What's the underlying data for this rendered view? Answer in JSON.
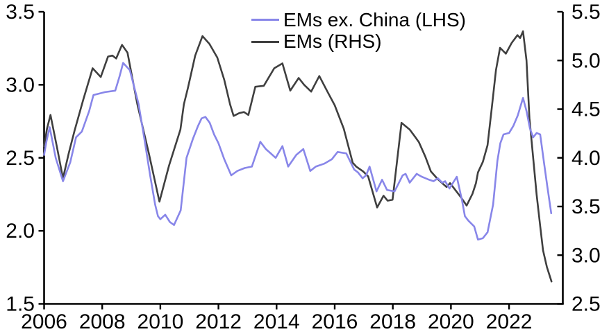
{
  "chart_data": {
    "type": "line",
    "title": "",
    "background_color": "#ffffff",
    "axis_color": "#000000",
    "text_color": "#000000",
    "grid": false,
    "legend": {
      "position": "top-center",
      "entries": [
        "EMs ex. China (LHS)",
        "EMs (RHS)"
      ]
    },
    "x_axis": {
      "range": [
        2006,
        2023.85
      ],
      "ticks": [
        2006,
        2008,
        2010,
        2012,
        2014,
        2016,
        2018,
        2020,
        2022
      ]
    },
    "y_axis_left": {
      "range": [
        1.5,
        3.5
      ],
      "ticks": [
        1.5,
        2.0,
        2.5,
        3.0,
        3.5
      ],
      "decimals": 1
    },
    "y_axis_right": {
      "range": [
        2.5,
        5.5
      ],
      "ticks": [
        2.5,
        3.0,
        3.5,
        4.0,
        4.5,
        5.0,
        5.5
      ],
      "decimals": 1
    },
    "series": [
      {
        "name": "EMs ex. China (LHS)",
        "axis": "left",
        "color": "#8886e9",
        "points": [
          [
            2006.0,
            2.52
          ],
          [
            2006.08,
            2.61
          ],
          [
            2006.19,
            2.71
          ],
          [
            2006.4,
            2.5
          ],
          [
            2006.65,
            2.34
          ],
          [
            2006.9,
            2.47
          ],
          [
            2007.1,
            2.64
          ],
          [
            2007.3,
            2.68
          ],
          [
            2007.55,
            2.82
          ],
          [
            2007.7,
            2.93
          ],
          [
            2007.9,
            2.94
          ],
          [
            2008.1,
            2.95
          ],
          [
            2008.45,
            2.96
          ],
          [
            2008.6,
            3.06
          ],
          [
            2008.72,
            3.15
          ],
          [
            2008.95,
            3.1
          ],
          [
            2009.25,
            2.87
          ],
          [
            2009.45,
            2.63
          ],
          [
            2009.65,
            2.38
          ],
          [
            2009.82,
            2.18
          ],
          [
            2009.92,
            2.1
          ],
          [
            2010.0,
            2.08
          ],
          [
            2010.17,
            2.11
          ],
          [
            2010.33,
            2.06
          ],
          [
            2010.47,
            2.04
          ],
          [
            2010.7,
            2.14
          ],
          [
            2010.9,
            2.5
          ],
          [
            2011.12,
            2.63
          ],
          [
            2011.3,
            2.72
          ],
          [
            2011.42,
            2.77
          ],
          [
            2011.55,
            2.78
          ],
          [
            2011.7,
            2.74
          ],
          [
            2011.85,
            2.66
          ],
          [
            2012.0,
            2.6
          ],
          [
            2012.2,
            2.49
          ],
          [
            2012.44,
            2.38
          ],
          [
            2012.65,
            2.41
          ],
          [
            2012.9,
            2.43
          ],
          [
            2013.15,
            2.44
          ],
          [
            2013.44,
            2.61
          ],
          [
            2013.63,
            2.56
          ],
          [
            2013.8,
            2.53
          ],
          [
            2013.97,
            2.5
          ],
          [
            2014.2,
            2.58
          ],
          [
            2014.4,
            2.44
          ],
          [
            2014.68,
            2.52
          ],
          [
            2014.92,
            2.56
          ],
          [
            2015.16,
            2.41
          ],
          [
            2015.35,
            2.44
          ],
          [
            2015.64,
            2.46
          ],
          [
            2015.9,
            2.49
          ],
          [
            2016.1,
            2.54
          ],
          [
            2016.4,
            2.53
          ],
          [
            2016.67,
            2.42
          ],
          [
            2016.8,
            2.4
          ],
          [
            2016.96,
            2.36
          ],
          [
            2017.08,
            2.38
          ],
          [
            2017.2,
            2.44
          ],
          [
            2017.44,
            2.27
          ],
          [
            2017.63,
            2.35
          ],
          [
            2017.8,
            2.28
          ],
          [
            2018.06,
            2.27
          ],
          [
            2018.34,
            2.38
          ],
          [
            2018.44,
            2.39
          ],
          [
            2018.58,
            2.33
          ],
          [
            2018.82,
            2.39
          ],
          [
            2019.0,
            2.37
          ],
          [
            2019.25,
            2.35
          ],
          [
            2019.4,
            2.34
          ],
          [
            2019.55,
            2.36
          ],
          [
            2019.7,
            2.33
          ],
          [
            2019.8,
            2.34
          ],
          [
            2019.95,
            2.29
          ],
          [
            2020.2,
            2.37
          ],
          [
            2020.38,
            2.21
          ],
          [
            2020.48,
            2.1
          ],
          [
            2020.6,
            2.07
          ],
          [
            2020.8,
            2.03
          ],
          [
            2020.93,
            1.94
          ],
          [
            2021.1,
            1.95
          ],
          [
            2021.26,
            1.99
          ],
          [
            2021.45,
            2.18
          ],
          [
            2021.6,
            2.48
          ],
          [
            2021.7,
            2.6
          ],
          [
            2021.81,
            2.66
          ],
          [
            2022.0,
            2.67
          ],
          [
            2022.15,
            2.72
          ],
          [
            2022.3,
            2.79
          ],
          [
            2022.48,
            2.91
          ],
          [
            2022.6,
            2.82
          ],
          [
            2022.72,
            2.7
          ],
          [
            2022.83,
            2.64
          ],
          [
            2022.95,
            2.67
          ],
          [
            2023.07,
            2.66
          ],
          [
            2023.2,
            2.47
          ],
          [
            2023.32,
            2.3
          ],
          [
            2023.45,
            2.12
          ]
        ]
      },
      {
        "name": "EMs (RHS)",
        "axis": "right",
        "color": "#3f3f3f",
        "points": [
          [
            2006.0,
            4.12
          ],
          [
            2006.1,
            4.3
          ],
          [
            2006.22,
            4.44
          ],
          [
            2006.45,
            4.1
          ],
          [
            2006.65,
            3.79
          ],
          [
            2006.85,
            4.05
          ],
          [
            2007.05,
            4.28
          ],
          [
            2007.35,
            4.6
          ],
          [
            2007.67,
            4.92
          ],
          [
            2007.95,
            4.83
          ],
          [
            2008.2,
            5.04
          ],
          [
            2008.35,
            5.05
          ],
          [
            2008.48,
            5.02
          ],
          [
            2008.68,
            5.16
          ],
          [
            2008.87,
            5.08
          ],
          [
            2009.21,
            4.55
          ],
          [
            2009.6,
            4.05
          ],
          [
            2009.97,
            3.55
          ],
          [
            2010.3,
            3.92
          ],
          [
            2010.69,
            4.29
          ],
          [
            2010.81,
            4.55
          ],
          [
            2010.95,
            4.72
          ],
          [
            2011.2,
            5.05
          ],
          [
            2011.45,
            5.25
          ],
          [
            2011.69,
            5.17
          ],
          [
            2011.96,
            5.03
          ],
          [
            2012.2,
            4.8
          ],
          [
            2012.4,
            4.55
          ],
          [
            2012.52,
            4.43
          ],
          [
            2012.72,
            4.46
          ],
          [
            2012.88,
            4.47
          ],
          [
            2013.03,
            4.44
          ],
          [
            2013.27,
            4.73
          ],
          [
            2013.56,
            4.74
          ],
          [
            2013.92,
            4.92
          ],
          [
            2014.2,
            4.97
          ],
          [
            2014.47,
            4.69
          ],
          [
            2014.76,
            4.82
          ],
          [
            2014.95,
            4.75
          ],
          [
            2015.19,
            4.68
          ],
          [
            2015.47,
            4.84
          ],
          [
            2015.75,
            4.68
          ],
          [
            2016.0,
            4.54
          ],
          [
            2016.31,
            4.3
          ],
          [
            2016.62,
            3.95
          ],
          [
            2016.74,
            3.91
          ],
          [
            2016.98,
            3.86
          ],
          [
            2017.15,
            3.81
          ],
          [
            2017.46,
            3.49
          ],
          [
            2017.68,
            3.61
          ],
          [
            2017.82,
            3.56
          ],
          [
            2017.99,
            3.57
          ],
          [
            2018.3,
            4.36
          ],
          [
            2018.58,
            4.29
          ],
          [
            2018.78,
            4.21
          ],
          [
            2018.9,
            4.16
          ],
          [
            2019.12,
            4.01
          ],
          [
            2019.31,
            3.86
          ],
          [
            2019.55,
            3.78
          ],
          [
            2019.7,
            3.74
          ],
          [
            2019.85,
            3.7
          ],
          [
            2019.97,
            3.74
          ],
          [
            2020.33,
            3.6
          ],
          [
            2020.54,
            3.51
          ],
          [
            2020.74,
            3.63
          ],
          [
            2020.86,
            3.74
          ],
          [
            2020.93,
            3.85
          ],
          [
            2021.1,
            3.96
          ],
          [
            2021.26,
            4.13
          ],
          [
            2021.4,
            4.5
          ],
          [
            2021.55,
            4.9
          ],
          [
            2021.69,
            5.13
          ],
          [
            2021.89,
            5.07
          ],
          [
            2022.09,
            5.18
          ],
          [
            2022.29,
            5.26
          ],
          [
            2022.38,
            5.23
          ],
          [
            2022.48,
            5.3
          ],
          [
            2022.6,
            5.0
          ],
          [
            2022.7,
            4.41
          ],
          [
            2022.83,
            4.0
          ],
          [
            2022.95,
            3.62
          ],
          [
            2023.07,
            3.3
          ],
          [
            2023.17,
            3.05
          ],
          [
            2023.3,
            2.88
          ],
          [
            2023.46,
            2.73
          ]
        ]
      }
    ]
  }
}
